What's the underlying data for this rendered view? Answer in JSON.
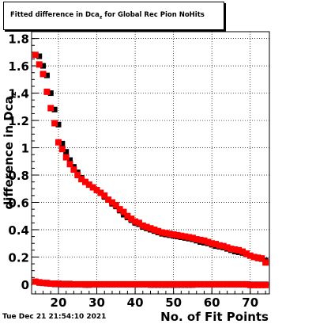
{
  "header": {
    "title": "Fitted difference in Dca_z for Global Rec Pion NoHits",
    "timestamp": "Tue Dec 21 21:54:10 2021"
  },
  "chart_data": {
    "type": "scatter",
    "title": "Fitted difference in Dca_z for Global Rec Pion NoHits",
    "xlabel": "No. of Fit Points",
    "ylabel": "difference in Dca_z",
    "xlim": [
      13,
      75
    ],
    "ylim": [
      -0.07,
      1.85
    ],
    "grid": true,
    "x_ticks": [
      20,
      30,
      40,
      50,
      60,
      70
    ],
    "y_ticks": [
      0,
      0.2,
      0.4,
      0.6,
      0.8,
      1,
      1.2,
      1.4,
      1.6,
      1.8
    ],
    "x_tick_labels": [
      "20",
      "30",
      "40",
      "50",
      "60",
      "70"
    ],
    "y_tick_labels": [
      "0",
      "0.2",
      "0.4",
      "0.6",
      "0.8",
      "1",
      "1.2",
      "1.4",
      "1.6",
      "1.8"
    ],
    "series": [
      {
        "color": "#000000",
        "x": [
          15,
          16,
          17,
          18,
          19,
          20,
          21,
          22,
          23,
          24,
          25,
          26,
          27,
          28,
          29,
          30,
          31,
          32,
          33,
          34,
          35,
          36,
          37,
          38,
          39,
          40,
          41,
          42,
          43,
          44,
          45,
          46,
          47,
          48,
          49,
          50,
          51,
          52,
          53,
          54,
          55,
          56,
          57,
          58,
          59,
          60,
          61,
          62,
          63,
          64,
          65,
          66,
          67,
          68,
          69,
          70,
          71,
          72,
          73,
          74
        ],
        "y": [
          1.67,
          1.6,
          1.53,
          1.4,
          1.28,
          1.17,
          1.03,
          0.97,
          0.91,
          0.86,
          0.82,
          0.78,
          0.75,
          0.73,
          0.71,
          0.69,
          0.67,
          0.64,
          0.62,
          0.59,
          0.57,
          0.54,
          0.51,
          0.49,
          0.47,
          0.45,
          0.44,
          0.42,
          0.41,
          0.4,
          0.39,
          0.38,
          0.37,
          0.365,
          0.36,
          0.355,
          0.35,
          0.345,
          0.34,
          0.335,
          0.33,
          0.32,
          0.31,
          0.305,
          0.3,
          0.29,
          0.28,
          0.275,
          0.27,
          0.26,
          0.25,
          0.24,
          0.235,
          0.23,
          0.22,
          0.21,
          0.2,
          0.19,
          0.185,
          0.175
        ]
      },
      {
        "color": "#000000",
        "x": [
          15,
          16,
          17,
          18,
          19,
          20,
          21,
          22,
          23,
          24,
          25,
          26,
          27,
          28,
          29,
          30,
          31,
          32,
          33,
          34,
          35,
          36,
          37,
          38,
          39,
          40,
          41,
          42,
          43,
          44,
          45,
          46,
          47,
          48,
          49,
          50,
          51,
          52,
          53,
          54,
          55,
          56,
          57,
          58,
          59,
          60,
          61,
          62,
          63,
          64,
          65,
          66,
          67,
          68,
          69,
          70,
          71,
          72,
          73,
          74
        ],
        "y": [
          0.01,
          0.01,
          0.005,
          0.005,
          0.0,
          0.0,
          0.005,
          0.005,
          0.005,
          0.0,
          0.0,
          0.0,
          -0.005,
          -0.005,
          0.0,
          0.0,
          0.0,
          0.0,
          0.0,
          0.0,
          0.0,
          0.0,
          0.0,
          0.0,
          0.0,
          0.0,
          0.0,
          0.0,
          0.0,
          -0.005,
          -0.005,
          -0.005,
          -0.005,
          -0.005,
          -0.005,
          -0.005,
          -0.005,
          -0.005,
          -0.005,
          -0.005,
          -0.005,
          0.0,
          0.0,
          0.0,
          0.0,
          0.0,
          0.0,
          0.0,
          0.0,
          0.0,
          0.0,
          0.0,
          0.0,
          0.0,
          0.0,
          0.0,
          0.0,
          0.0,
          0.0,
          0.0
        ]
      },
      {
        "color": "#ff0000",
        "x": [
          14,
          15,
          16,
          17,
          18,
          19,
          20,
          21,
          22,
          23,
          24,
          25,
          26,
          27,
          28,
          29,
          30,
          31,
          32,
          33,
          34,
          35,
          36,
          37,
          38,
          39,
          40,
          41,
          42,
          43,
          44,
          45,
          46,
          47,
          48,
          49,
          50,
          51,
          52,
          53,
          54,
          55,
          56,
          57,
          58,
          59,
          60,
          61,
          62,
          63,
          64,
          65,
          66,
          67,
          68,
          69,
          70,
          71,
          72,
          73,
          74
        ],
        "y": [
          1.68,
          1.61,
          1.54,
          1.41,
          1.29,
          1.18,
          1.04,
          0.99,
          0.93,
          0.88,
          0.84,
          0.8,
          0.77,
          0.75,
          0.73,
          0.71,
          0.69,
          0.67,
          0.65,
          0.62,
          0.6,
          0.58,
          0.55,
          0.53,
          0.5,
          0.48,
          0.46,
          0.45,
          0.43,
          0.42,
          0.41,
          0.4,
          0.39,
          0.38,
          0.375,
          0.37,
          0.365,
          0.36,
          0.355,
          0.35,
          0.345,
          0.34,
          0.33,
          0.325,
          0.32,
          0.31,
          0.3,
          0.295,
          0.285,
          0.28,
          0.27,
          0.26,
          0.255,
          0.25,
          0.24,
          0.225,
          0.21,
          0.2,
          0.195,
          0.19,
          0.16
        ]
      },
      {
        "color": "#ff0000",
        "x": [
          14,
          15,
          16,
          17,
          18,
          19,
          20,
          21,
          22,
          23,
          24,
          25,
          26,
          27,
          28,
          29,
          30,
          31,
          32,
          33,
          34,
          35,
          36,
          37,
          38,
          39,
          40,
          41,
          42,
          43,
          44,
          45,
          46,
          47,
          48,
          49,
          50,
          51,
          52,
          53,
          54,
          55,
          56,
          57,
          58,
          59,
          60,
          61,
          62,
          63,
          64,
          65,
          66,
          67,
          68,
          69,
          70,
          71,
          72,
          73,
          74
        ],
        "y": [
          0.02,
          0.015,
          0.01,
          0.01,
          0.005,
          0.005,
          0.005,
          0.0,
          0.0,
          0.0,
          0.0,
          0.0,
          0.0,
          0.0,
          0.0,
          0.0,
          0.0,
          0.0,
          0.0,
          0.0,
          0.0,
          0.0,
          0.0,
          0.0,
          0.0,
          0.0,
          0.0,
          0.0,
          0.0,
          0.0,
          0.0,
          0.0,
          0.0,
          0.0,
          0.0,
          0.0,
          0.0,
          0.0,
          0.0,
          0.0,
          0.0,
          0.0,
          0.0,
          0.0,
          0.0,
          0.0,
          0.0,
          0.0,
          0.0,
          0.0,
          0.0,
          0.0,
          0.0,
          0.0,
          0.0,
          0.0,
          -0.005,
          -0.005,
          -0.005,
          -0.005,
          -0.005
        ]
      }
    ]
  }
}
